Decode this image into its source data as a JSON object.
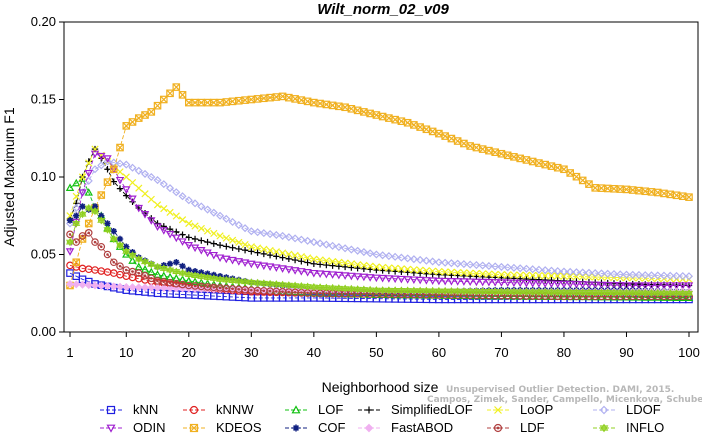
{
  "chart_data": {
    "type": "line",
    "title": "Wilt_norm_02_v09",
    "xlabel": "Neighborhood size",
    "ylabel": "Adjusted Maximum F1",
    "xlim": [
      1,
      100
    ],
    "ylim": [
      0,
      0.2
    ],
    "xticks": [
      "1",
      "10",
      "20",
      "30",
      "40",
      "50",
      "60",
      "70",
      "80",
      "90",
      "100"
    ],
    "yticks": [
      "0.00",
      "0.05",
      "0.10",
      "0.15",
      "0.20"
    ],
    "watermark": [
      "Unsupervised Outlier Detection. DAMI, 2015.",
      "Campos, Zimek, Sander, Campello, Micenkova, Schubert, Assent, Houle"
    ],
    "legend_position": "bottom",
    "series": [
      {
        "name": "kNN",
        "color": "#2020e0",
        "marker": "square",
        "points": [
          [
            1,
            0.038
          ],
          [
            3,
            0.034
          ],
          [
            5,
            0.031
          ],
          [
            10,
            0.027
          ],
          [
            15,
            0.025
          ],
          [
            20,
            0.024
          ],
          [
            30,
            0.022
          ],
          [
            40,
            0.022
          ],
          [
            60,
            0.021
          ],
          [
            80,
            0.021
          ],
          [
            100,
            0.021
          ]
        ]
      },
      {
        "name": "kNNW",
        "color": "#e02020",
        "marker": "circle",
        "points": [
          [
            1,
            0.043
          ],
          [
            3,
            0.041
          ],
          [
            5,
            0.04
          ],
          [
            8,
            0.038
          ],
          [
            10,
            0.036
          ],
          [
            15,
            0.032
          ],
          [
            20,
            0.029
          ],
          [
            30,
            0.026
          ],
          [
            40,
            0.025
          ],
          [
            60,
            0.024
          ],
          [
            80,
            0.023
          ],
          [
            100,
            0.023
          ]
        ]
      },
      {
        "name": "LOF",
        "color": "#10c010",
        "marker": "triangle-up",
        "points": [
          [
            1,
            0.093
          ],
          [
            2,
            0.096
          ],
          [
            3,
            0.099
          ],
          [
            4,
            0.09
          ],
          [
            5,
            0.08
          ],
          [
            6,
            0.075
          ],
          [
            7,
            0.067
          ],
          [
            8,
            0.06
          ],
          [
            9,
            0.055
          ],
          [
            10,
            0.05
          ],
          [
            12,
            0.042
          ],
          [
            15,
            0.037
          ],
          [
            20,
            0.033
          ],
          [
            25,
            0.03
          ],
          [
            30,
            0.028
          ],
          [
            40,
            0.025
          ],
          [
            50,
            0.024
          ],
          [
            70,
            0.023
          ],
          [
            100,
            0.022
          ]
        ]
      },
      {
        "name": "SimplifiedLOF",
        "color": "#000000",
        "marker": "plus",
        "points": [
          [
            1,
            0.073
          ],
          [
            2,
            0.083
          ],
          [
            3,
            0.1
          ],
          [
            4,
            0.11
          ],
          [
            5,
            0.118
          ],
          [
            6,
            0.112
          ],
          [
            7,
            0.105
          ],
          [
            8,
            0.097
          ],
          [
            10,
            0.088
          ],
          [
            12,
            0.08
          ],
          [
            15,
            0.07
          ],
          [
            20,
            0.061
          ],
          [
            25,
            0.056
          ],
          [
            30,
            0.052
          ],
          [
            35,
            0.048
          ],
          [
            40,
            0.044
          ],
          [
            50,
            0.04
          ],
          [
            60,
            0.037
          ],
          [
            70,
            0.035
          ],
          [
            80,
            0.033
          ],
          [
            90,
            0.031
          ],
          [
            100,
            0.03
          ]
        ]
      },
      {
        "name": "LoOP",
        "color": "#f0f020",
        "marker": "cross",
        "points": [
          [
            1,
            0.075
          ],
          [
            3,
            0.1
          ],
          [
            5,
            0.118
          ],
          [
            7,
            0.11
          ],
          [
            10,
            0.1
          ],
          [
            15,
            0.082
          ],
          [
            20,
            0.07
          ],
          [
            25,
            0.062
          ],
          [
            30,
            0.055
          ],
          [
            40,
            0.047
          ],
          [
            50,
            0.042
          ],
          [
            60,
            0.039
          ],
          [
            70,
            0.037
          ],
          [
            80,
            0.036
          ],
          [
            90,
            0.035
          ],
          [
            100,
            0.034
          ]
        ]
      },
      {
        "name": "LDOF",
        "color": "#b0b0f0",
        "marker": "diamond",
        "points": [
          [
            1,
            0.07
          ],
          [
            3,
            0.09
          ],
          [
            5,
            0.105
          ],
          [
            7,
            0.11
          ],
          [
            10,
            0.108
          ],
          [
            15,
            0.098
          ],
          [
            20,
            0.085
          ],
          [
            25,
            0.075
          ],
          [
            30,
            0.065
          ],
          [
            35,
            0.062
          ],
          [
            40,
            0.058
          ],
          [
            50,
            0.05
          ],
          [
            60,
            0.045
          ],
          [
            70,
            0.042
          ],
          [
            80,
            0.039
          ],
          [
            90,
            0.037
          ],
          [
            100,
            0.036
          ]
        ]
      },
      {
        "name": "ODIN",
        "color": "#a020d0",
        "marker": "triangle-down",
        "points": [
          [
            1,
            0.052
          ],
          [
            3,
            0.09
          ],
          [
            5,
            0.115
          ],
          [
            7,
            0.112
          ],
          [
            9,
            0.098
          ],
          [
            12,
            0.08
          ],
          [
            15,
            0.068
          ],
          [
            20,
            0.056
          ],
          [
            25,
            0.048
          ],
          [
            30,
            0.044
          ],
          [
            40,
            0.038
          ],
          [
            50,
            0.035
          ],
          [
            60,
            0.033
          ],
          [
            70,
            0.032
          ],
          [
            80,
            0.031
          ],
          [
            90,
            0.03
          ],
          [
            100,
            0.03
          ]
        ]
      },
      {
        "name": "KDEOS",
        "color": "#f0b020",
        "marker": "square-x",
        "points": [
          [
            1,
            0.03
          ],
          [
            3,
            0.06
          ],
          [
            5,
            0.08
          ],
          [
            8,
            0.105
          ],
          [
            10,
            0.133
          ],
          [
            12,
            0.138
          ],
          [
            14,
            0.142
          ],
          [
            16,
            0.15
          ],
          [
            18,
            0.158
          ],
          [
            20,
            0.148
          ],
          [
            25,
            0.148
          ],
          [
            30,
            0.15
          ],
          [
            35,
            0.152
          ],
          [
            40,
            0.148
          ],
          [
            45,
            0.145
          ],
          [
            50,
            0.14
          ],
          [
            55,
            0.135
          ],
          [
            60,
            0.128
          ],
          [
            65,
            0.12
          ],
          [
            70,
            0.115
          ],
          [
            75,
            0.11
          ],
          [
            80,
            0.105
          ],
          [
            85,
            0.093
          ],
          [
            90,
            0.092
          ],
          [
            95,
            0.09
          ],
          [
            100,
            0.087
          ]
        ]
      },
      {
        "name": "COF",
        "color": "#102080",
        "marker": "asterisk",
        "points": [
          [
            1,
            0.072
          ],
          [
            2,
            0.075
          ],
          [
            3,
            0.081
          ],
          [
            4,
            0.079
          ],
          [
            5,
            0.081
          ],
          [
            6,
            0.075
          ],
          [
            7,
            0.07
          ],
          [
            8,
            0.065
          ],
          [
            9,
            0.06
          ],
          [
            10,
            0.055
          ],
          [
            12,
            0.048
          ],
          [
            15,
            0.042
          ],
          [
            18,
            0.045
          ],
          [
            20,
            0.04
          ],
          [
            25,
            0.036
          ],
          [
            30,
            0.032
          ],
          [
            35,
            0.03
          ],
          [
            40,
            0.027
          ],
          [
            50,
            0.026
          ],
          [
            60,
            0.026
          ],
          [
            70,
            0.027
          ],
          [
            80,
            0.027
          ],
          [
            90,
            0.027
          ],
          [
            100,
            0.026
          ]
        ]
      },
      {
        "name": "FastABOD",
        "color": "#f0b0f0",
        "marker": "diamond-fill",
        "points": [
          [
            1,
            0.031
          ],
          [
            5,
            0.03
          ],
          [
            10,
            0.029
          ],
          [
            20,
            0.028
          ],
          [
            30,
            0.027
          ],
          [
            40,
            0.027
          ],
          [
            60,
            0.026
          ],
          [
            80,
            0.026
          ],
          [
            100,
            0.026
          ]
        ]
      },
      {
        "name": "LDF",
        "color": "#b04040",
        "marker": "circle-dot",
        "points": [
          [
            1,
            0.063
          ],
          [
            2,
            0.058
          ],
          [
            3,
            0.062
          ],
          [
            4,
            0.064
          ],
          [
            5,
            0.058
          ],
          [
            6,
            0.055
          ],
          [
            8,
            0.045
          ],
          [
            10,
            0.04
          ],
          [
            12,
            0.038
          ],
          [
            15,
            0.033
          ],
          [
            20,
            0.03
          ],
          [
            30,
            0.027
          ],
          [
            40,
            0.025
          ],
          [
            60,
            0.024
          ],
          [
            80,
            0.023
          ],
          [
            100,
            0.023
          ]
        ]
      },
      {
        "name": "INFLO",
        "color": "#90d020",
        "marker": "star",
        "points": [
          [
            1,
            0.058
          ],
          [
            2,
            0.07
          ],
          [
            3,
            0.076
          ],
          [
            4,
            0.08
          ],
          [
            5,
            0.078
          ],
          [
            6,
            0.072
          ],
          [
            7,
            0.066
          ],
          [
            8,
            0.06
          ],
          [
            9,
            0.056
          ],
          [
            10,
            0.052
          ],
          [
            12,
            0.047
          ],
          [
            15,
            0.042
          ],
          [
            20,
            0.037
          ],
          [
            25,
            0.034
          ],
          [
            30,
            0.032
          ],
          [
            40,
            0.029
          ],
          [
            50,
            0.027
          ],
          [
            70,
            0.026
          ],
          [
            100,
            0.025
          ]
        ]
      }
    ]
  }
}
